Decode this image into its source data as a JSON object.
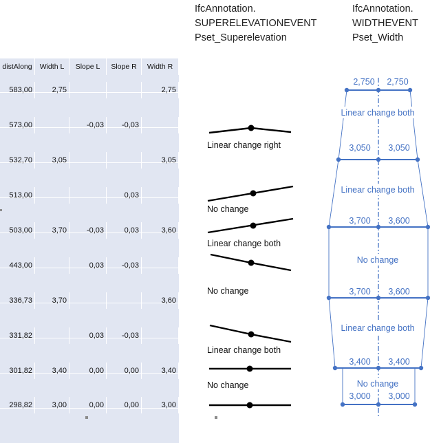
{
  "table": {
    "headers": [
      "distAlong",
      "Width L",
      "Slope L",
      "Slope R",
      "Width R"
    ],
    "rows": [
      [
        "583,00",
        "2,75",
        "",
        "",
        "2,75"
      ],
      [
        "573,00",
        "",
        "-0,03",
        "-0,03",
        ""
      ],
      [
        "532,70",
        "3,05",
        "",
        "",
        "3,05"
      ],
      [
        "513,00",
        "",
        "",
        "0,03",
        ""
      ],
      [
        "503,00",
        "3,70",
        "-0,03",
        "0,03",
        "3,60"
      ],
      [
        "443,00",
        "",
        "0,03",
        "-0,03",
        ""
      ],
      [
        "336,73",
        "3,70",
        "",
        "",
        "3,60"
      ],
      [
        "331,82",
        "",
        "0,03",
        "-0,03",
        ""
      ],
      [
        "301,82",
        "3,40",
        "0,00",
        "0,00",
        "3,40"
      ],
      [
        "298,82",
        "3,00",
        "0,00",
        "0,00",
        "3,00"
      ]
    ]
  },
  "superelevation": {
    "title_lines": [
      "IfcAnnotation.",
      "SUPERELEVATIONEVENT",
      "Pset_Superelevation"
    ],
    "labels": [
      "Linear change right",
      "No change",
      "Linear change both",
      "No change",
      "Linear change both",
      "No change"
    ]
  },
  "width": {
    "title_lines": [
      "IfcAnnotation.",
      "WIDTHEVENT",
      "Pset_Width"
    ],
    "values": [
      [
        "2,750",
        "2,750"
      ],
      [
        "3,050",
        "3,050"
      ],
      [
        "3,700",
        "3,600"
      ],
      [
        "3,700",
        "3,600"
      ],
      [
        "3,400",
        "3,400"
      ],
      [
        "3,000",
        "3,000"
      ]
    ],
    "labels": [
      "Linear change both",
      "Linear change both",
      "No change",
      "Linear change both",
      "No change"
    ]
  },
  "colors": {
    "table_fill": "#e1e6f2",
    "width_blue": "#4472c4",
    "line_black": "#000000"
  }
}
